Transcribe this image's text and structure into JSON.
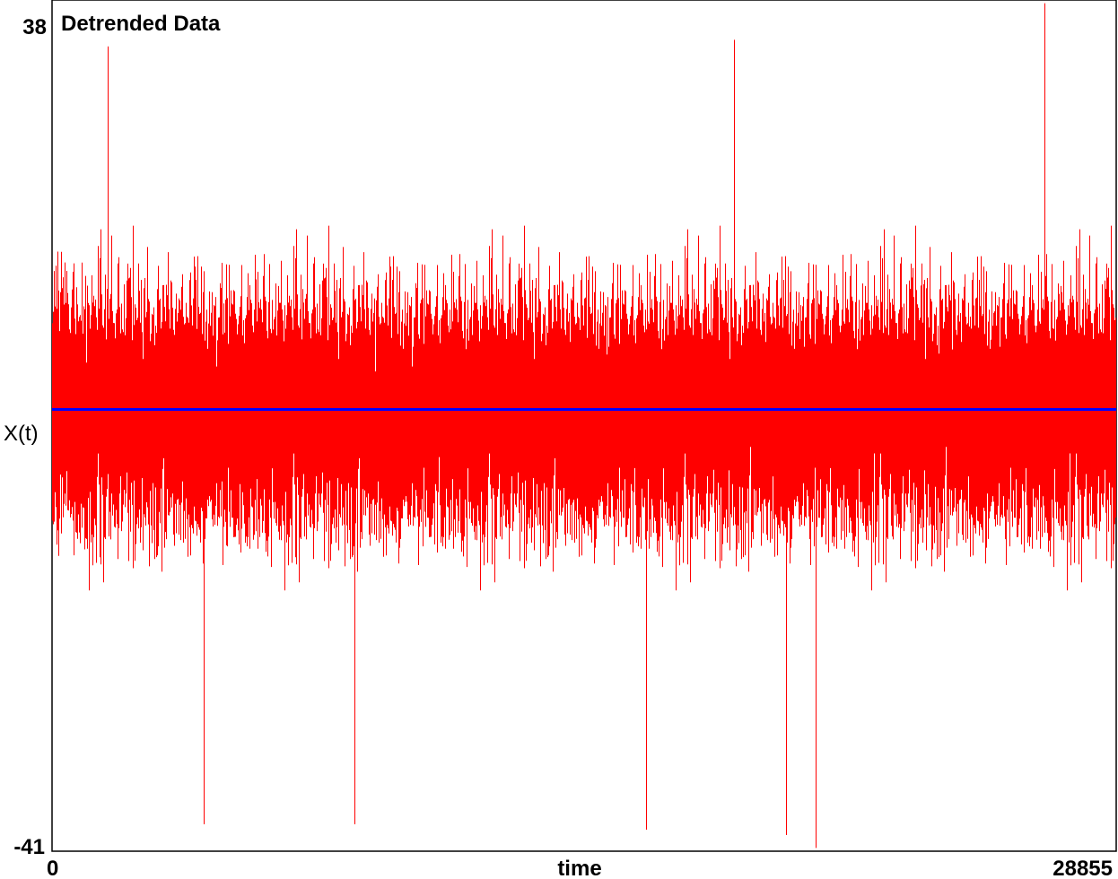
{
  "chart_data": {
    "type": "line",
    "title": "Detrended Data",
    "xlabel": "time",
    "ylabel": "X(t)",
    "xlim": [
      0,
      28855
    ],
    "ylim": [
      -41,
      38
    ],
    "y_tick_labels": [
      "38",
      "-41"
    ],
    "x_tick_labels": [
      "0",
      "28855"
    ],
    "grid": false,
    "legend": "none",
    "series": [
      {
        "style": "noisy-signal",
        "color": "#ff0000",
        "n_points": 28855,
        "mean": 0,
        "typical_range": [
          -25,
          25
        ],
        "notable_peaks": [
          {
            "x": 1500,
            "y": 33.7
          },
          {
            "x": 18500,
            "y": 34.3
          },
          {
            "x": 26900,
            "y": 37.7
          }
        ],
        "notable_troughs": [
          {
            "x": 4100,
            "y": -38.5
          },
          {
            "x": 8200,
            "y": -38.5
          },
          {
            "x": 16100,
            "y": -39
          },
          {
            "x": 19900,
            "y": -39.5
          },
          {
            "x": 20700,
            "y": -40.7
          }
        ]
      },
      {
        "style": "horizontal-mean-line",
        "color": "#0000ff",
        "y": 0
      }
    ]
  }
}
